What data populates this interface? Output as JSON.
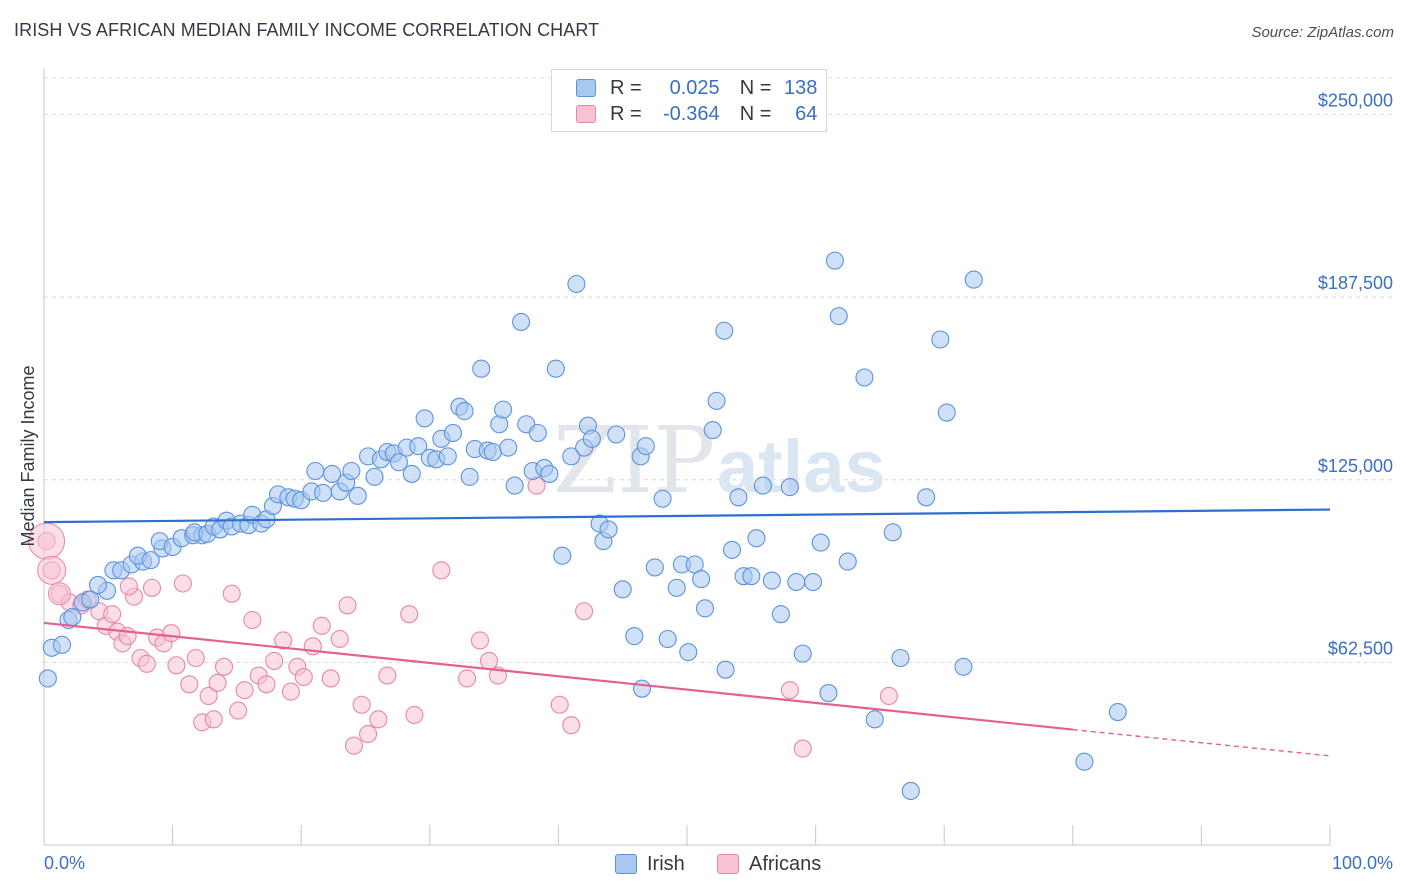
{
  "header": {
    "title": "IRISH VS AFRICAN MEDIAN FAMILY INCOME CORRELATION CHART",
    "source": "Source: ZipAtlas.com"
  },
  "colors": {
    "irish_fill": "#a9c8f0",
    "irish_stroke": "#5b93dc",
    "irish_line": "#2b6fcf",
    "africans_fill": "#f7c2d3",
    "africans_stroke": "#e887a8",
    "africans_line": "#e4608f",
    "tick_text": "#3a6fc4",
    "grid": "#dcdcdc"
  },
  "legend": {
    "irish": {
      "r_label": "R =",
      "r_value": "0.025",
      "n_label": "N =",
      "n_value": "138"
    },
    "africans": {
      "r_label": "R =",
      "r_value": "-0.364",
      "n_label": "N =",
      "n_value": "64"
    }
  },
  "bottom_legend": {
    "irish": "Irish",
    "africans": "Africans"
  },
  "watermark": {
    "zip": "ZIP",
    "atlas": "atlas"
  },
  "chart_data": {
    "type": "scatter",
    "xlabel": "",
    "ylabel": "Median Family Income",
    "xlim": [
      0,
      100
    ],
    "ylim": [
      0,
      262500
    ],
    "x_tick_labels": [
      "0.0%",
      "100.0%"
    ],
    "y_ticks": [
      62500,
      125000,
      187500,
      250000
    ],
    "y_tick_labels": [
      "$62,500",
      "$125,000",
      "$187,500",
      "$250,000"
    ],
    "series": [
      {
        "name": "Irish",
        "trend": {
          "x": [
            0,
            100
          ],
          "y": [
            110500,
            114800
          ]
        },
        "points": [
          [
            0.3,
            57000
          ],
          [
            0.6,
            67500
          ],
          [
            1.4,
            68500
          ],
          [
            1.9,
            77000
          ],
          [
            2.2,
            78000
          ],
          [
            3.0,
            83000
          ],
          [
            3.6,
            84000
          ],
          [
            4.9,
            87000
          ],
          [
            4.2,
            89000
          ],
          [
            5.4,
            94000
          ],
          [
            6.0,
            94000
          ],
          [
            6.8,
            96000
          ],
          [
            7.7,
            97000
          ],
          [
            7.3,
            99000
          ],
          [
            8.3,
            97500
          ],
          [
            9.2,
            101500
          ],
          [
            9.0,
            104000
          ],
          [
            10.0,
            102000
          ],
          [
            10.7,
            105000
          ],
          [
            11.6,
            106000
          ],
          [
            12.3,
            106000
          ],
          [
            11.7,
            107000
          ],
          [
            12.7,
            106500
          ],
          [
            13.2,
            109000
          ],
          [
            13.7,
            108000
          ],
          [
            14.2,
            111000
          ],
          [
            14.6,
            109000
          ],
          [
            15.3,
            110000
          ],
          [
            15.9,
            109500
          ],
          [
            16.2,
            113000
          ],
          [
            16.9,
            110000
          ],
          [
            17.3,
            111500
          ],
          [
            17.8,
            116000
          ],
          [
            18.2,
            120000
          ],
          [
            19.0,
            119000
          ],
          [
            19.5,
            118500
          ],
          [
            20.0,
            118000
          ],
          [
            20.8,
            121000
          ],
          [
            21.1,
            128000
          ],
          [
            21.7,
            120500
          ],
          [
            22.4,
            127000
          ],
          [
            23.0,
            121000
          ],
          [
            23.5,
            124000
          ],
          [
            23.9,
            128000
          ],
          [
            24.4,
            119500
          ],
          [
            25.2,
            133000
          ],
          [
            25.7,
            126000
          ],
          [
            26.2,
            132000
          ],
          [
            26.7,
            134500
          ],
          [
            27.2,
            134000
          ],
          [
            27.6,
            131000
          ],
          [
            28.2,
            136000
          ],
          [
            28.6,
            127000
          ],
          [
            29.1,
            136500
          ],
          [
            29.6,
            146000
          ],
          [
            30.0,
            132500
          ],
          [
            30.5,
            132000
          ],
          [
            30.9,
            139000
          ],
          [
            31.4,
            133000
          ],
          [
            31.8,
            141000
          ],
          [
            32.3,
            150000
          ],
          [
            32.7,
            148500
          ],
          [
            33.1,
            126000
          ],
          [
            33.5,
            135500
          ],
          [
            34.0,
            163000
          ],
          [
            34.5,
            135000
          ],
          [
            34.9,
            134500
          ],
          [
            35.4,
            144000
          ],
          [
            35.7,
            149000
          ],
          [
            36.1,
            136000
          ],
          [
            36.6,
            123000
          ],
          [
            37.1,
            179000
          ],
          [
            37.5,
            144000
          ],
          [
            38.0,
            128000
          ],
          [
            38.4,
            141000
          ],
          [
            38.9,
            129000
          ],
          [
            39.3,
            127000
          ],
          [
            39.8,
            163000
          ],
          [
            40.3,
            99000
          ],
          [
            41.0,
            133000
          ],
          [
            41.4,
            192000
          ],
          [
            42.0,
            136000
          ],
          [
            42.3,
            143500
          ],
          [
            42.6,
            139000
          ],
          [
            43.2,
            110000
          ],
          [
            43.5,
            104000
          ],
          [
            43.9,
            108000
          ],
          [
            44.5,
            140500
          ],
          [
            45.0,
            87500
          ],
          [
            45.9,
            71500
          ],
          [
            46.4,
            133000
          ],
          [
            46.8,
            136500
          ],
          [
            46.5,
            53500
          ],
          [
            47.5,
            95000
          ],
          [
            48.1,
            118500
          ],
          [
            48.5,
            70500
          ],
          [
            49.2,
            88000
          ],
          [
            49.6,
            96000
          ],
          [
            50.1,
            66000
          ],
          [
            50.6,
            96000
          ],
          [
            51.1,
            91000
          ],
          [
            51.4,
            81000
          ],
          [
            52.0,
            142000
          ],
          [
            52.3,
            152000
          ],
          [
            52.9,
            176000
          ],
          [
            53.0,
            60000
          ],
          [
            53.5,
            101000
          ],
          [
            54.0,
            119000
          ],
          [
            54.4,
            92000
          ],
          [
            55.0,
            92000
          ],
          [
            55.4,
            105000
          ],
          [
            55.9,
            123000
          ],
          [
            56.6,
            90500
          ],
          [
            57.3,
            79000
          ],
          [
            58.0,
            122500
          ],
          [
            58.5,
            90000
          ],
          [
            59.0,
            65500
          ],
          [
            59.8,
            90000
          ],
          [
            60.4,
            103500
          ],
          [
            61.0,
            52000
          ],
          [
            61.5,
            200000
          ],
          [
            61.8,
            181000
          ],
          [
            62.5,
            97000
          ],
          [
            63.8,
            160000
          ],
          [
            64.6,
            43000
          ],
          [
            66.0,
            107000
          ],
          [
            66.6,
            64000
          ],
          [
            67.4,
            18500
          ],
          [
            68.6,
            119000
          ],
          [
            69.7,
            173000
          ],
          [
            70.2,
            148000
          ],
          [
            71.5,
            61000
          ],
          [
            72.3,
            193500
          ],
          [
            80.9,
            28500
          ],
          [
            83.5,
            45500
          ]
        ]
      },
      {
        "name": "Africans",
        "trend": {
          "x": [
            0,
            80
          ],
          "y": [
            76000,
            39500
          ]
        },
        "trend_dashed": {
          "x": [
            80,
            100
          ],
          "y": [
            39500,
            30500
          ]
        },
        "points": [
          [
            0.2,
            104000
          ],
          [
            0.6,
            94000
          ],
          [
            1.2,
            86000
          ],
          [
            2.0,
            83000
          ],
          [
            2.9,
            82000
          ],
          [
            3.4,
            84000
          ],
          [
            4.3,
            80000
          ],
          [
            4.8,
            75000
          ],
          [
            5.3,
            79000
          ],
          [
            5.7,
            73000
          ],
          [
            6.1,
            69000
          ],
          [
            6.5,
            71500
          ],
          [
            7.0,
            85000
          ],
          [
            7.5,
            64000
          ],
          [
            8.0,
            62000
          ],
          [
            8.4,
            88000
          ],
          [
            8.8,
            71000
          ],
          [
            9.3,
            69000
          ],
          [
            9.9,
            72500
          ],
          [
            10.3,
            61500
          ],
          [
            10.8,
            89500
          ],
          [
            11.3,
            55000
          ],
          [
            11.8,
            64000
          ],
          [
            12.3,
            42000
          ],
          [
            12.8,
            51000
          ],
          [
            13.2,
            43000
          ],
          [
            13.5,
            55500
          ],
          [
            14.0,
            61000
          ],
          [
            14.6,
            86000
          ],
          [
            15.1,
            46000
          ],
          [
            15.6,
            53000
          ],
          [
            16.2,
            77000
          ],
          [
            16.7,
            58000
          ],
          [
            17.3,
            55000
          ],
          [
            17.9,
            63000
          ],
          [
            18.6,
            70000
          ],
          [
            19.2,
            52500
          ],
          [
            19.7,
            61000
          ],
          [
            20.2,
            57500
          ],
          [
            20.9,
            68000
          ],
          [
            21.6,
            75000
          ],
          [
            22.3,
            57000
          ],
          [
            23.0,
            70500
          ],
          [
            23.6,
            82000
          ],
          [
            24.1,
            34000
          ],
          [
            24.7,
            48000
          ],
          [
            25.2,
            38000
          ],
          [
            26.0,
            43000
          ],
          [
            26.7,
            58000
          ],
          [
            28.4,
            79000
          ],
          [
            28.8,
            44500
          ],
          [
            30.9,
            94000
          ],
          [
            32.9,
            57000
          ],
          [
            33.9,
            70000
          ],
          [
            34.6,
            63000
          ],
          [
            35.3,
            58000
          ],
          [
            38.3,
            123000
          ],
          [
            40.1,
            48000
          ],
          [
            41.0,
            41000
          ],
          [
            42.0,
            80000
          ],
          [
            58.0,
            53000
          ],
          [
            59.0,
            33000
          ],
          [
            65.7,
            51000
          ],
          [
            6.6,
            88500
          ]
        ]
      }
    ]
  }
}
